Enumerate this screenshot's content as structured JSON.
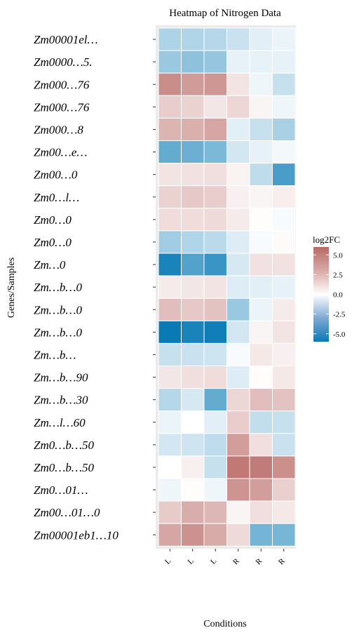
{
  "chart_data": {
    "type": "heatmap",
    "title": "Heatmap of Nitrogen Data",
    "xlabel": "Conditions",
    "ylabel": "Genes/Samples",
    "legend": {
      "title": "log2FC",
      "ticks": [
        5.0,
        2.5,
        0.0,
        -2.5,
        -5.0
      ],
      "range": [
        -6,
        6
      ],
      "placement": "right"
    },
    "colors": {
      "low": "#0a7ab5",
      "mid": "#ffffff",
      "high": "#b96a66",
      "background": "#ebebeb",
      "grid": "#ffffff"
    },
    "grid": false,
    "row_labels": [
      "Zm00001el…",
      "Zm0000…5.",
      "Zm000…76",
      "Zm000…76",
      "Zm000…8",
      "Zm00…e…",
      "Zm00…0",
      "Zm0…l…",
      "Zm0…0",
      "Zm0…0",
      "Zm…0",
      "Zm…b…0",
      "Zm…b…0",
      "Zm…b…0",
      "Zm…b…",
      "Zm…b…90",
      "Zm…b…30",
      "Zm…l…60",
      "Zm0…b…50",
      "Zm0…b…50",
      "Zm0…01…",
      "Zm00…01…0",
      "Zm00001eb1…10"
    ],
    "col_labels": [
      "L",
      "L",
      "L",
      "R",
      "R",
      "R"
    ],
    "values": [
      [
        -2.0,
        -1.9,
        -1.8,
        -1.3,
        -0.7,
        -0.5
      ],
      [
        -2.5,
        -2.8,
        -2.6,
        -0.6,
        -0.6,
        -0.6
      ],
      [
        4.6,
        4.0,
        4.2,
        1.1,
        -0.4,
        -1.4
      ],
      [
        2.0,
        1.8,
        1.0,
        1.6,
        0.4,
        -0.4
      ],
      [
        3.0,
        3.2,
        3.6,
        -0.7,
        -1.4,
        -2.1
      ],
      [
        -3.8,
        -3.6,
        -3.2,
        -1.1,
        -0.6,
        -0.3
      ],
      [
        1.1,
        1.2,
        1.3,
        0.5,
        -1.6,
        -4.4
      ],
      [
        1.8,
        2.2,
        2.0,
        0.6,
        0.4,
        0.7
      ],
      [
        1.4,
        1.4,
        1.5,
        0.8,
        0.1,
        -0.2
      ],
      [
        -2.3,
        -1.9,
        -1.7,
        -0.8,
        -0.2,
        0.2
      ],
      [
        -5.6,
        -4.2,
        -4.8,
        -1.0,
        1.2,
        1.2
      ],
      [
        0.8,
        1.0,
        1.1,
        -0.8,
        -0.7,
        -0.6
      ],
      [
        2.6,
        2.2,
        2.4,
        -2.5,
        -0.5,
        0.8
      ],
      [
        -6.0,
        -5.6,
        -5.8,
        -1.1,
        0.4,
        1.1
      ],
      [
        -1.4,
        -1.3,
        -1.2,
        -0.2,
        0.9,
        0.6
      ],
      [
        1.0,
        1.3,
        1.4,
        -0.8,
        0.1,
        0.9
      ],
      [
        -1.8,
        -1.0,
        -3.8,
        1.6,
        2.6,
        2.4
      ],
      [
        -0.5,
        0.0,
        -0.7,
        2.0,
        -1.5,
        -1.4
      ],
      [
        -1.1,
        -1.2,
        -1.6,
        3.9,
        1.3,
        -1.3
      ],
      [
        0.0,
        0.6,
        -1.4,
        5.4,
        5.3,
        4.5
      ],
      [
        -0.4,
        0.1,
        -0.4,
        4.3,
        3.9,
        1.9
      ],
      [
        2.1,
        3.3,
        2.9,
        0.4,
        1.3,
        0.9
      ],
      [
        3.6,
        4.4,
        3.4,
        1.5,
        -3.4,
        -3.3
      ]
    ]
  }
}
